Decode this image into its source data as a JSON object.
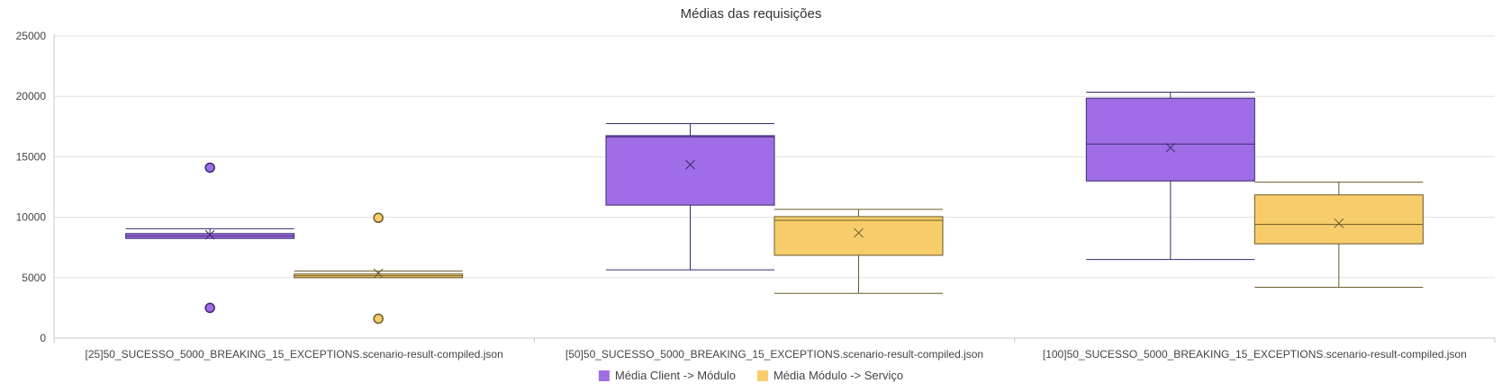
{
  "chart_data": {
    "type": "boxplot",
    "title": "Médias das requisições",
    "xlabel": "",
    "ylabel": "",
    "ylim": [
      0,
      25000
    ],
    "yticks": [
      0,
      5000,
      10000,
      15000,
      20000,
      25000
    ],
    "ytick_labels": [
      "0",
      "5000",
      "10000",
      "15000",
      "20000",
      "25000"
    ],
    "grid": true,
    "legend_position": "bottom-center",
    "categories": [
      "[25]50_SUCESSO_5000_BREAKING_15_EXCEPTIONS.scenario-result-compiled.json",
      "[50]50_SUCESSO_5000_BREAKING_15_EXCEPTIONS.scenario-result-compiled.json",
      "[100]50_SUCESSO_5000_BREAKING_15_EXCEPTIONS.scenario-result-compiled.json"
    ],
    "series": [
      {
        "name": "Média Client -> Módulo",
        "color": "#9f6ee6",
        "stroke": "#3b2a6b",
        "boxes": [
          {
            "min": 8250,
            "q1": 8250,
            "median": 8450,
            "q3": 8650,
            "max": 9050,
            "mean": 8550,
            "outliers": [
              14100,
              2500
            ]
          },
          {
            "min": 5650,
            "q1": 11000,
            "median": 16650,
            "q3": 16750,
            "max": 17750,
            "mean": 14350,
            "outliers": []
          },
          {
            "min": 6500,
            "q1": 13000,
            "median": 16050,
            "q3": 19850,
            "max": 20350,
            "mean": 15750,
            "outliers": []
          }
        ]
      },
      {
        "name": "Média Módulo -> Serviço",
        "color": "#f7cd6b",
        "stroke": "#6b5a2a",
        "boxes": [
          {
            "min": 5000,
            "q1": 5000,
            "median": 5150,
            "q3": 5300,
            "max": 5550,
            "mean": 5350,
            "outliers": [
              9950,
              1600
            ]
          },
          {
            "min": 3700,
            "q1": 6850,
            "median": 9750,
            "q3": 10050,
            "max": 10650,
            "mean": 8700,
            "outliers": []
          },
          {
            "min": 4200,
            "q1": 7800,
            "median": 9400,
            "q3": 11850,
            "max": 12900,
            "mean": 9500,
            "outliers": []
          }
        ]
      }
    ]
  },
  "colors": {
    "grid": "#e0e0e0",
    "axis": "#c8c8c8"
  }
}
